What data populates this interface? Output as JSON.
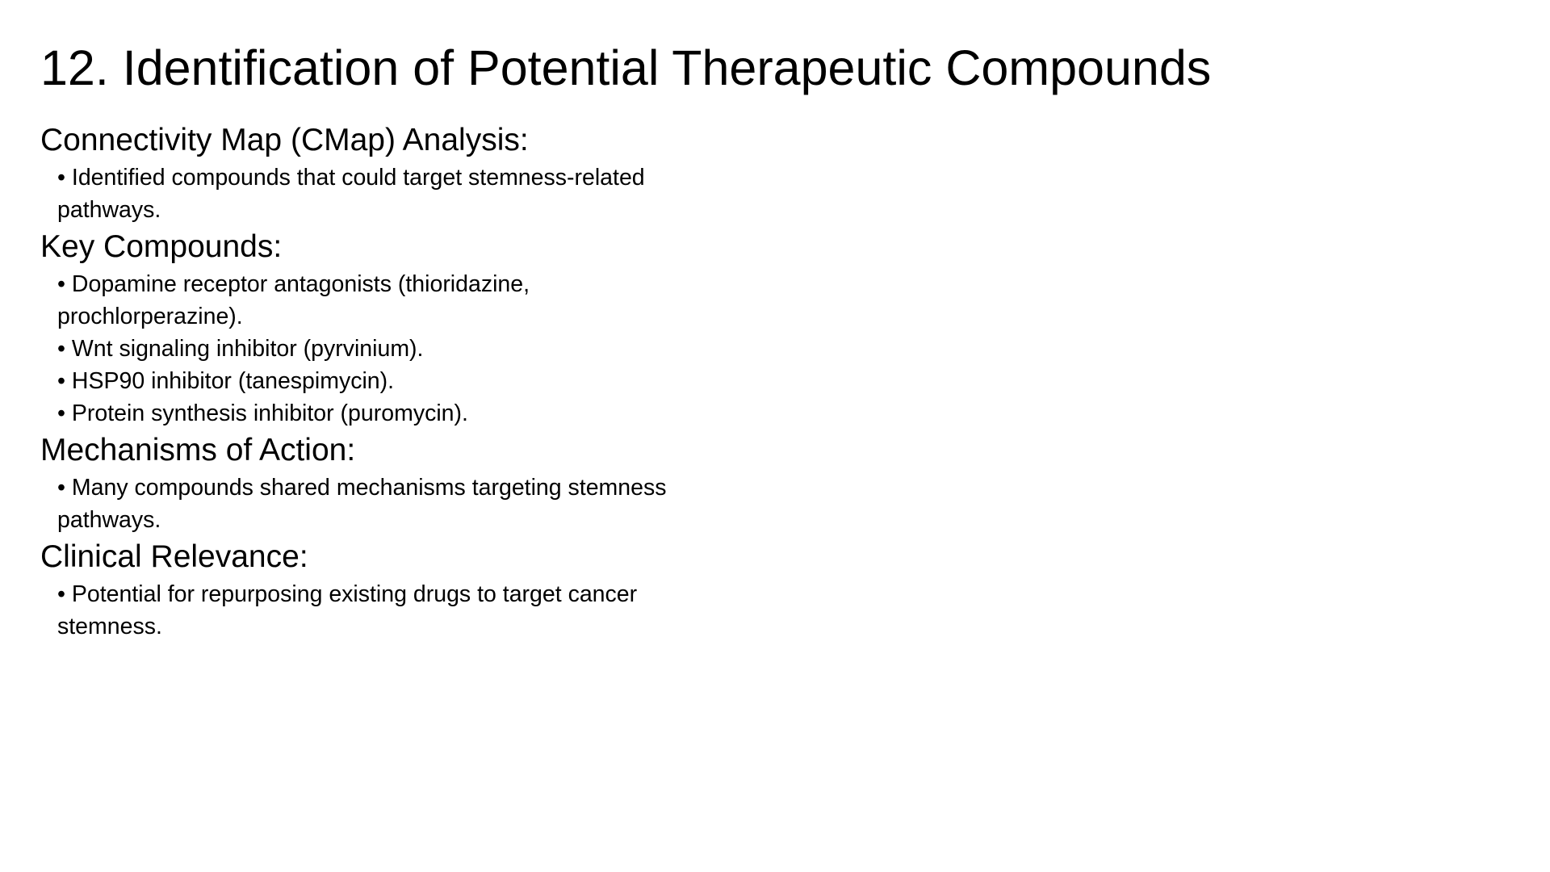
{
  "title": "12. Identification of Potential Therapeutic Compounds",
  "sections": [
    {
      "heading": "Connectivity Map (CMap) Analysis:",
      "bullets": [
        "• Identified compounds that could target stemness-related pathways."
      ]
    },
    {
      "heading": "Key Compounds:",
      "bullets": [
        "• Dopamine receptor antagonists (thioridazine, prochlorperazine).",
        "• Wnt signaling inhibitor (pyrvinium).",
        "• HSP90 inhibitor (tanespimycin).",
        "• Protein synthesis inhibitor (puromycin)."
      ]
    },
    {
      "heading": "Mechanisms of Action:",
      "bullets": [
        "• Many compounds shared mechanisms targeting stemness pathways."
      ]
    },
    {
      "heading": "Clinical Relevance:",
      "bullets": [
        "• Potential for repurposing existing drugs to target cancer stemness."
      ]
    }
  ]
}
